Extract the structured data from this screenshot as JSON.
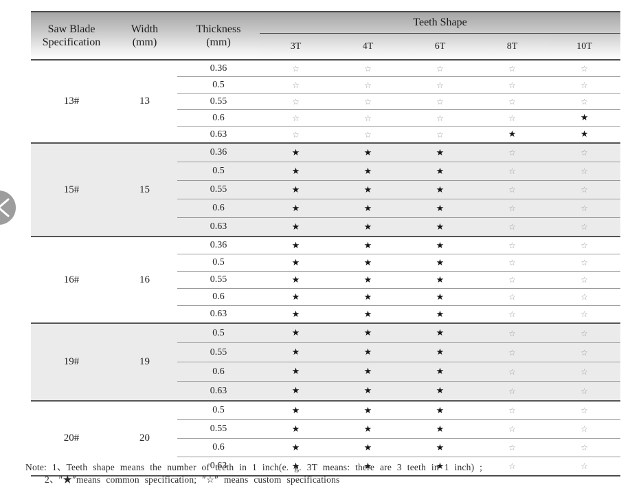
{
  "table": {
    "header": {
      "spec_line1": "Saw Blade",
      "spec_line2": "Specification",
      "width_line1": "Width",
      "width_line2": "(mm)",
      "thickness_line1": "Thickness",
      "thickness_line2": "(mm)",
      "teeth_shape": "Teeth Shape",
      "teeth_cols": [
        "3T",
        "4T",
        "6T",
        "8T",
        "10T"
      ]
    },
    "groups": [
      {
        "spec": "13#",
        "width": "13",
        "shaded": false,
        "rows": [
          {
            "thickness": "0.36",
            "stars": [
              "☆",
              "☆",
              "☆",
              "☆",
              "☆"
            ]
          },
          {
            "thickness": "0.5",
            "stars": [
              "☆",
              "☆",
              "☆",
              "☆",
              "☆"
            ]
          },
          {
            "thickness": "0.55",
            "stars": [
              "☆",
              "☆",
              "☆",
              "☆",
              "☆"
            ]
          },
          {
            "thickness": "0.6",
            "stars": [
              "☆",
              "☆",
              "☆",
              "☆",
              "★"
            ]
          },
          {
            "thickness": "0.63",
            "stars": [
              "☆",
              "☆",
              "☆",
              "★",
              "★"
            ]
          }
        ]
      },
      {
        "spec": "15#",
        "width": "15",
        "shaded": true,
        "rows": [
          {
            "thickness": "0.36",
            "stars": [
              "★",
              "★",
              "★",
              "☆",
              "☆"
            ]
          },
          {
            "thickness": "0.5",
            "stars": [
              "★",
              "★",
              "★",
              "☆",
              "☆"
            ]
          },
          {
            "thickness": "0.55",
            "stars": [
              "★",
              "★",
              "★",
              "☆",
              "☆"
            ]
          },
          {
            "thickness": "0.6",
            "stars": [
              "★",
              "★",
              "★",
              "☆",
              "☆"
            ]
          },
          {
            "thickness": "0.63",
            "stars": [
              "★",
              "★",
              "★",
              "☆",
              "☆"
            ]
          }
        ]
      },
      {
        "spec": "16#",
        "width": "16",
        "shaded": false,
        "rows": [
          {
            "thickness": "0.36",
            "stars": [
              "★",
              "★",
              "★",
              "☆",
              "☆"
            ]
          },
          {
            "thickness": "0.5",
            "stars": [
              "★",
              "★",
              "★",
              "☆",
              "☆"
            ]
          },
          {
            "thickness": "0.55",
            "stars": [
              "★",
              "★",
              "★",
              "☆",
              "☆"
            ]
          },
          {
            "thickness": "0.6",
            "stars": [
              "★",
              "★",
              "★",
              "☆",
              "☆"
            ]
          },
          {
            "thickness": "0.63",
            "stars": [
              "★",
              "★",
              "★",
              "☆",
              "☆"
            ]
          }
        ]
      },
      {
        "spec": "19#",
        "width": "19",
        "shaded": true,
        "rows": [
          {
            "thickness": "0.5",
            "stars": [
              "★",
              "★",
              "★",
              "☆",
              "☆"
            ]
          },
          {
            "thickness": "0.55",
            "stars": [
              "★",
              "★",
              "★",
              "☆",
              "☆"
            ]
          },
          {
            "thickness": "0.6",
            "stars": [
              "★",
              "★",
              "★",
              "☆",
              "☆"
            ]
          },
          {
            "thickness": "0.63",
            "stars": [
              "★",
              "★",
              "★",
              "☆",
              "☆"
            ]
          }
        ]
      },
      {
        "spec": "20#",
        "width": "20",
        "shaded": false,
        "rows": [
          {
            "thickness": "0.5",
            "stars": [
              "★",
              "★",
              "★",
              "☆",
              "☆"
            ]
          },
          {
            "thickness": "0.55",
            "stars": [
              "★",
              "★",
              "★",
              "☆",
              "☆"
            ]
          },
          {
            "thickness": "0.6",
            "stars": [
              "★",
              "★",
              "★",
              "☆",
              "☆"
            ]
          },
          {
            "thickness": "0.63",
            "stars": [
              "★",
              "★",
              "★",
              "☆",
              "☆"
            ]
          }
        ]
      }
    ]
  },
  "legend": {
    "filled_star": "★",
    "outline_star": "☆",
    "filled_meaning": "common specification",
    "outline_meaning": "custom specifications"
  },
  "note": {
    "line1": "Note: 1、Teeth shape means the number of teeth in 1 inch(e. g.  3T  means: there are 3 teeth in 1 inch) ;",
    "line2": "2、″★″means common specification;  ″☆″ means custom specifications"
  },
  "carousel": {
    "prev_icon": "chevron-left"
  },
  "colors": {
    "shaded_row_bg": "#ebebeb",
    "filled_star": "#161616",
    "outline_star": "#9d9d9d",
    "header_gradient_top": "#a5a5a5",
    "heavy_line": "#4a4a4a",
    "thin_line": "#999999"
  }
}
